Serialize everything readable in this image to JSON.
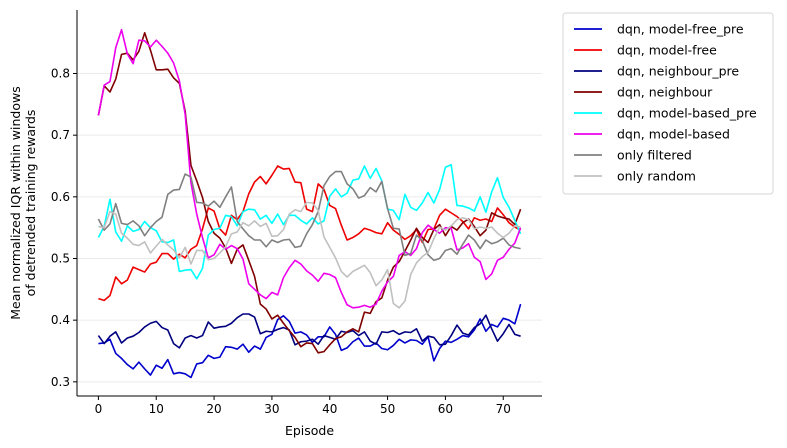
{
  "chart_data": {
    "type": "line",
    "xlabel": "Episode",
    "ylabel_lines": [
      "Mean normalized IQR within windows",
      "of detrended training rewards"
    ],
    "xlim": [
      -3.7,
      76.7
    ],
    "ylim": [
      0.277,
      0.903
    ],
    "xticks": [
      0,
      10,
      20,
      30,
      40,
      50,
      60,
      70
    ],
    "yticks": [
      0.3,
      0.4,
      0.5,
      0.6,
      0.7,
      0.8
    ],
    "ytick_labels": [
      "0.3",
      "0.4",
      "0.5",
      "0.6",
      "0.7",
      "0.8"
    ],
    "grid": "horizontal",
    "legend_position": "outside-right-top",
    "series": [
      {
        "name": "dqn, model-free_pre",
        "color": "#0000cd",
        "values": [
          0.362,
          0.363,
          0.369,
          0.346,
          0.338,
          0.328,
          0.321,
          0.332,
          0.321,
          0.311,
          0.327,
          0.322,
          0.336,
          0.313,
          0.315,
          0.313,
          0.307,
          0.329,
          0.331,
          0.343,
          0.338,
          0.34,
          0.357,
          0.356,
          0.353,
          0.361,
          0.348,
          0.358,
          0.353,
          0.372,
          0.377,
          0.401,
          0.407,
          0.398,
          0.379,
          0.381,
          0.376,
          0.364,
          0.373,
          0.373,
          0.389,
          0.377,
          0.351,
          0.355,
          0.365,
          0.371,
          0.358,
          0.358,
          0.363,
          0.354,
          0.352,
          0.359,
          0.369,
          0.363,
          0.368,
          0.367,
          0.361,
          0.373,
          0.334,
          0.354,
          0.366,
          0.364,
          0.369,
          0.375,
          0.373,
          0.384,
          0.402,
          0.382,
          0.393,
          0.389,
          0.403,
          0.4,
          0.394,
          0.426
        ]
      },
      {
        "name": "dqn, model-free",
        "color": "#ee0000",
        "values": [
          0.435,
          0.432,
          0.44,
          0.47,
          0.459,
          0.465,
          0.486,
          0.482,
          0.478,
          0.491,
          0.494,
          0.508,
          0.508,
          0.499,
          0.507,
          0.501,
          0.515,
          0.521,
          0.548,
          0.582,
          0.577,
          0.548,
          0.538,
          0.57,
          0.563,
          0.576,
          0.605,
          0.624,
          0.633,
          0.621,
          0.635,
          0.65,
          0.645,
          0.646,
          0.624,
          0.623,
          0.58,
          0.576,
          0.621,
          0.612,
          0.586,
          0.581,
          0.554,
          0.53,
          0.534,
          0.54,
          0.549,
          0.546,
          0.542,
          0.54,
          0.558,
          0.546,
          0.539,
          0.531,
          0.537,
          0.547,
          0.526,
          0.547,
          0.548,
          0.57,
          0.58,
          0.574,
          0.568,
          0.56,
          0.548,
          0.566,
          0.562,
          0.564,
          0.56,
          0.582,
          0.571,
          0.558,
          0.551,
          0.546
        ]
      },
      {
        "name": "dqn, neighbour_pre",
        "color": "#000080",
        "values": [
          0.375,
          0.362,
          0.374,
          0.381,
          0.363,
          0.371,
          0.374,
          0.38,
          0.389,
          0.395,
          0.398,
          0.388,
          0.384,
          0.362,
          0.355,
          0.371,
          0.375,
          0.371,
          0.375,
          0.397,
          0.387,
          0.389,
          0.39,
          0.395,
          0.404,
          0.41,
          0.41,
          0.405,
          0.378,
          0.382,
          0.381,
          0.385,
          0.388,
          0.384,
          0.36,
          0.365,
          0.366,
          0.369,
          0.361,
          0.375,
          0.372,
          0.369,
          0.382,
          0.38,
          0.383,
          0.375,
          0.381,
          0.366,
          0.361,
          0.381,
          0.38,
          0.383,
          0.377,
          0.381,
          0.38,
          0.386,
          0.366,
          0.374,
          0.372,
          0.36,
          0.361,
          0.375,
          0.392,
          0.379,
          0.376,
          0.388,
          0.394,
          0.408,
          0.386,
          0.366,
          0.378,
          0.393,
          0.377,
          0.374
        ]
      },
      {
        "name": "dqn, neighbour",
        "color": "#800000",
        "values": [
          0.732,
          0.78,
          0.77,
          0.791,
          0.831,
          0.833,
          0.822,
          0.836,
          0.866,
          0.838,
          0.806,
          0.806,
          0.807,
          0.793,
          0.784,
          0.739,
          0.651,
          0.626,
          0.599,
          0.56,
          0.541,
          0.533,
          0.517,
          0.492,
          0.515,
          0.522,
          0.497,
          0.471,
          0.426,
          0.418,
          0.402,
          0.408,
          0.395,
          0.383,
          0.372,
          0.357,
          0.363,
          0.362,
          0.347,
          0.349,
          0.36,
          0.37,
          0.373,
          0.381,
          0.386,
          0.381,
          0.413,
          0.411,
          0.43,
          0.436,
          0.465,
          0.486,
          0.495,
          0.512,
          0.53,
          0.549,
          0.534,
          0.526,
          0.547,
          0.555,
          0.537,
          0.552,
          0.546,
          0.558,
          0.564,
          0.552,
          0.537,
          0.546,
          0.574,
          0.569,
          0.566,
          0.564,
          0.555,
          0.58
        ]
      },
      {
        "name": "dqn, model-based_pre",
        "color": "#00ffff",
        "values": [
          0.534,
          0.552,
          0.596,
          0.543,
          0.528,
          0.553,
          0.544,
          0.547,
          0.56,
          0.55,
          0.545,
          0.527,
          0.526,
          0.53,
          0.479,
          0.481,
          0.482,
          0.467,
          0.484,
          0.538,
          0.547,
          0.549,
          0.57,
          0.568,
          0.553,
          0.576,
          0.58,
          0.579,
          0.564,
          0.57,
          0.557,
          0.572,
          0.555,
          0.57,
          0.57,
          0.562,
          0.556,
          0.566,
          0.556,
          0.561,
          0.601,
          0.613,
          0.6,
          0.606,
          0.627,
          0.629,
          0.65,
          0.63,
          0.646,
          0.626,
          0.58,
          0.578,
          0.563,
          0.604,
          0.583,
          0.578,
          0.59,
          0.607,
          0.59,
          0.612,
          0.648,
          0.652,
          0.586,
          0.585,
          0.582,
          0.577,
          0.6,
          0.575,
          0.608,
          0.631,
          0.599,
          0.583,
          0.562,
          0.54
        ]
      },
      {
        "name": "dqn, model-based",
        "color": "#ee00ee",
        "values": [
          0.732,
          0.781,
          0.787,
          0.842,
          0.871,
          0.832,
          0.816,
          0.854,
          0.853,
          0.843,
          0.854,
          0.844,
          0.833,
          0.817,
          0.788,
          0.734,
          0.623,
          0.572,
          0.534,
          0.501,
          0.506,
          0.523,
          0.515,
          0.521,
          0.516,
          0.499,
          0.459,
          0.45,
          0.441,
          0.435,
          0.445,
          0.441,
          0.469,
          0.485,
          0.497,
          0.491,
          0.48,
          0.473,
          0.463,
          0.476,
          0.474,
          0.469,
          0.445,
          0.425,
          0.42,
          0.421,
          0.424,
          0.421,
          0.426,
          0.447,
          0.462,
          0.471,
          0.505,
          0.511,
          0.505,
          0.516,
          0.542,
          0.554,
          0.547,
          0.541,
          0.55,
          0.549,
          0.514,
          0.517,
          0.524,
          0.502,
          0.495,
          0.466,
          0.475,
          0.497,
          0.502,
          0.515,
          0.525,
          0.55
        ]
      },
      {
        "name": "only filtered",
        "color": "#808080",
        "values": [
          0.564,
          0.546,
          0.556,
          0.589,
          0.557,
          0.555,
          0.561,
          0.553,
          0.537,
          0.55,
          0.56,
          0.567,
          0.604,
          0.611,
          0.612,
          0.637,
          0.632,
          0.591,
          0.59,
          0.585,
          0.593,
          0.583,
          0.6,
          0.616,
          0.56,
          0.548,
          0.537,
          0.53,
          0.53,
          0.519,
          0.53,
          0.526,
          0.53,
          0.531,
          0.518,
          0.52,
          0.54,
          0.555,
          0.576,
          0.618,
          0.633,
          0.641,
          0.641,
          0.621,
          0.613,
          0.598,
          0.602,
          0.615,
          0.608,
          0.625,
          0.581,
          0.549,
          0.548,
          0.505,
          0.508,
          0.538,
          0.529,
          0.506,
          0.497,
          0.5,
          0.513,
          0.516,
          0.507,
          0.523,
          0.538,
          0.53,
          0.516,
          0.53,
          0.524,
          0.527,
          0.533,
          0.522,
          0.518,
          0.516
        ]
      },
      {
        "name": "only random",
        "color": "#c0c0c0",
        "values": [
          0.552,
          0.55,
          0.576,
          0.572,
          0.541,
          0.533,
          0.523,
          0.521,
          0.527,
          0.509,
          0.52,
          0.531,
          0.522,
          0.514,
          0.501,
          0.518,
          0.491,
          0.513,
          0.513,
          0.498,
          0.5,
          0.509,
          0.519,
          0.54,
          0.543,
          0.558,
          0.553,
          0.561,
          0.552,
          0.557,
          0.536,
          0.537,
          0.547,
          0.572,
          0.579,
          0.576,
          0.591,
          0.59,
          0.578,
          0.535,
          0.518,
          0.501,
          0.479,
          0.47,
          0.479,
          0.484,
          0.489,
          0.477,
          0.456,
          0.465,
          0.482,
          0.427,
          0.42,
          0.431,
          0.474,
          0.493,
          0.503,
          0.51,
          0.532,
          0.551,
          0.546,
          0.553,
          0.563,
          0.566,
          0.563,
          0.548,
          0.551,
          0.549,
          0.551,
          0.541,
          0.534,
          0.541,
          0.553,
          0.551
        ]
      }
    ]
  }
}
